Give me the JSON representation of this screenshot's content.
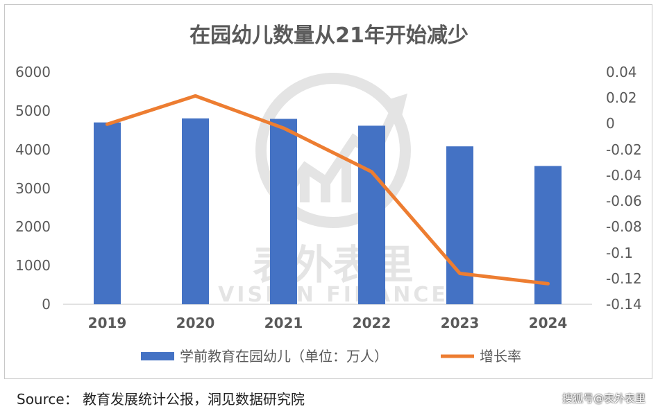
{
  "chart_data": {
    "type": "bar",
    "title": "在园幼儿数量从21年开始减少",
    "categories": [
      "2019",
      "2020",
      "2021",
      "2022",
      "2023",
      "2024"
    ],
    "series": [
      {
        "name": "学前教育在园幼儿（单位：万人）",
        "type": "bar",
        "axis": "left",
        "color": "#4472C4",
        "values": [
          4713,
          4818,
          4805,
          4628,
          4093,
          3584
        ]
      },
      {
        "name": "增长率",
        "type": "line",
        "axis": "right",
        "color": "#ED7D31",
        "values": [
          0.0,
          0.022,
          -0.003,
          -0.037,
          -0.116,
          -0.124
        ]
      }
    ],
    "y_left": {
      "ylim": [
        0,
        6000
      ],
      "ticks": [
        "0",
        "1000",
        "2000",
        "3000",
        "4000",
        "5000",
        "6000"
      ]
    },
    "y_right": {
      "ylim": [
        -0.14,
        0.04
      ],
      "ticks": [
        "0.04",
        "0.02",
        "0",
        "-0.02",
        "-0.04",
        "-0.06",
        "-0.08",
        "-0.1",
        "-0.12",
        "-0.14"
      ]
    },
    "grid": false,
    "legend_position": "bottom"
  },
  "watermark": {
    "text_cn": "表外表里",
    "text_en": "VISION FINANCE"
  },
  "footer": {
    "source": "Source：  教育发展统计公报，洞见数据研究院",
    "credit": "搜狐号@表外表里"
  },
  "colors": {
    "bar": "#4472C4",
    "line": "#ED7D31",
    "text": "#595959",
    "axis": "#d9d9d9"
  }
}
